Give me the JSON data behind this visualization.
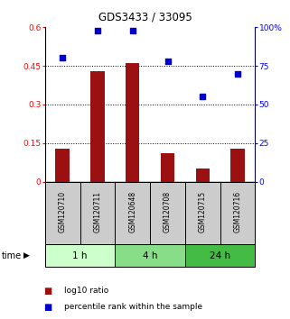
{
  "title": "GDS3433 / 33095",
  "samples": [
    "GSM120710",
    "GSM120711",
    "GSM120648",
    "GSM120708",
    "GSM120715",
    "GSM120716"
  ],
  "log10_ratio": [
    0.13,
    0.43,
    0.46,
    0.11,
    0.05,
    0.13
  ],
  "percentile_rank": [
    80,
    98,
    98,
    78,
    55,
    70
  ],
  "bar_color": "#9B1010",
  "scatter_color": "#0000CC",
  "left_ylim": [
    0,
    0.6
  ],
  "right_ylim": [
    0,
    100
  ],
  "left_yticks": [
    0,
    0.15,
    0.3,
    0.45,
    0.6
  ],
  "right_yticks": [
    0,
    25,
    50,
    75,
    100
  ],
  "left_ytick_labels": [
    "0",
    "0.15",
    "0.3",
    "0.45",
    "0.6"
  ],
  "right_ytick_labels": [
    "0",
    "25",
    "50",
    "75",
    "100%"
  ],
  "grid_values": [
    0.15,
    0.3,
    0.45
  ],
  "time_groups": [
    {
      "label": "1 h",
      "start": 0,
      "end": 2,
      "color": "#ccffcc"
    },
    {
      "label": "4 h",
      "start": 2,
      "end": 4,
      "color": "#88dd88"
    },
    {
      "label": "24 h",
      "start": 4,
      "end": 6,
      "color": "#44bb44"
    }
  ],
  "bar_width": 0.4,
  "legend_bar_label": "log10 ratio",
  "legend_scatter_label": "percentile rank within the sample",
  "sample_box_color": "#cccccc",
  "sample_box_edge_color": "#000000"
}
